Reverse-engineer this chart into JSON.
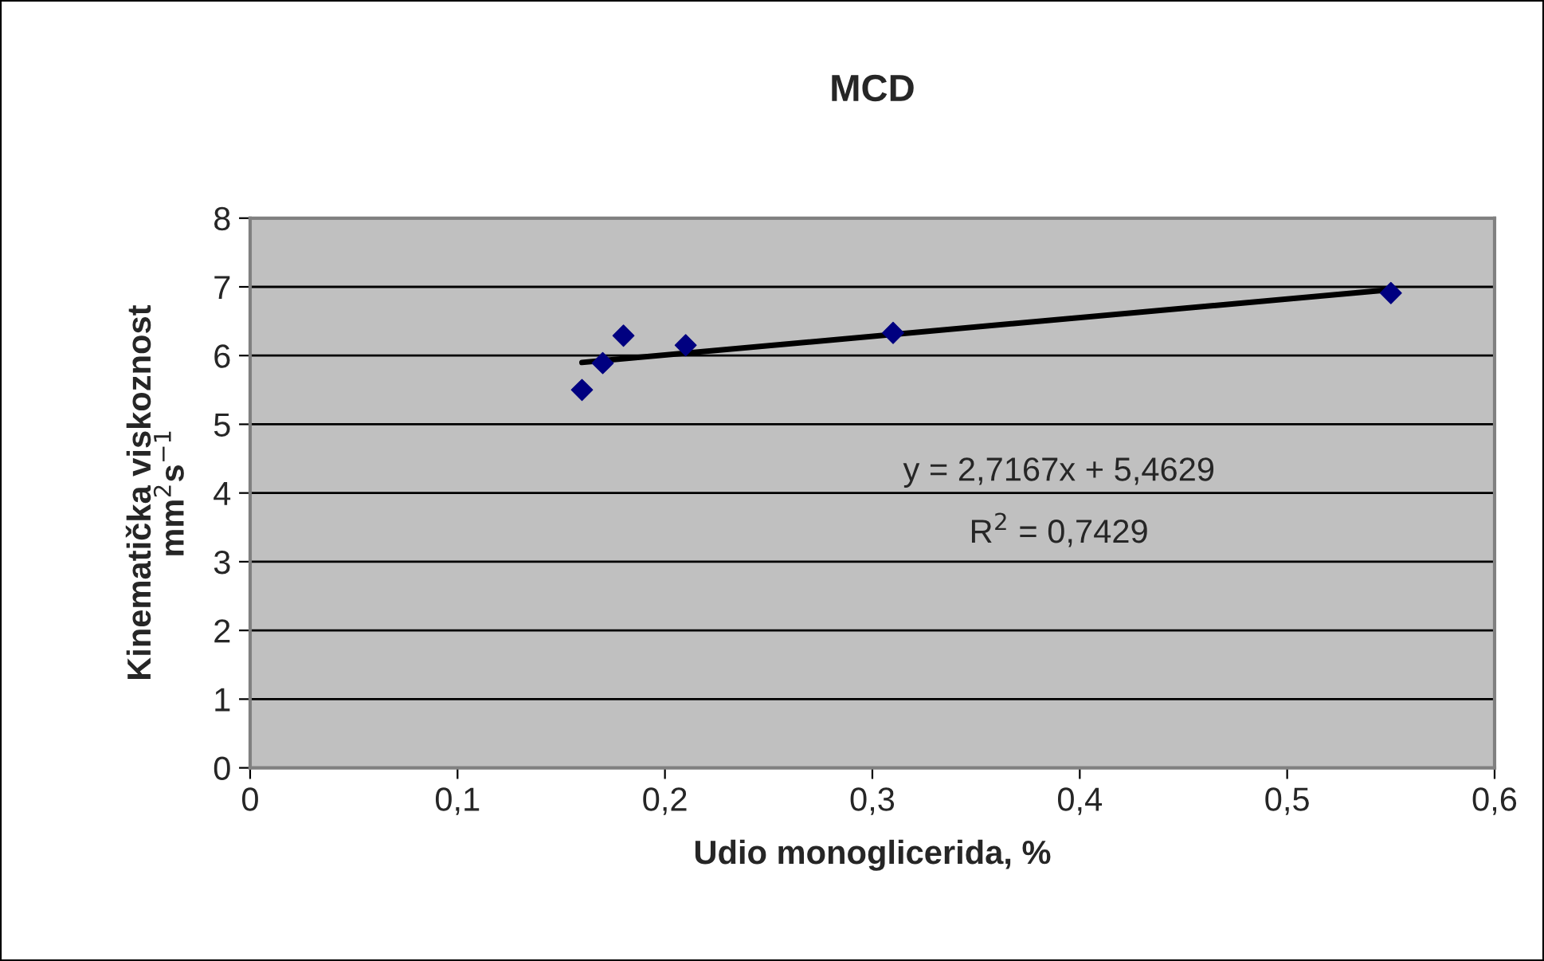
{
  "chart_data": {
    "type": "scatter",
    "title": "MCD",
    "xlabel": "Udio monoglicerida, %",
    "ylabel": "Kinematička viskoznost\nmm$^{2}$s$^{−1}$",
    "x": [
      0.16,
      0.17,
      0.18,
      0.21,
      0.31,
      0.55
    ],
    "series": [
      {
        "color": "#000080",
        "marker": "diamond",
        "values": [
          5.5,
          5.89,
          6.29,
          6.15,
          6.33,
          6.91
        ]
      },
      {
        "type": "line",
        "color": "#000000",
        "marker": "none",
        "line_style": "solid",
        "x": [
          0.16,
          0.55
        ],
        "values": [
          5.9,
          6.96
        ]
      }
    ],
    "xlim": [
      0,
      0.6
    ],
    "xticks": [
      0,
      {
        "value": 0.1,
        "label": "0,1"
      },
      {
        "value": 0.2,
        "label": "0,2"
      },
      {
        "value": 0.3,
        "label": "0,3"
      },
      {
        "value": 0.4,
        "label": "0,4"
      },
      {
        "value": 0.5,
        "label": "0,5"
      },
      {
        "value": 0.6,
        "label": "0,6"
      }
    ],
    "ylim": [
      0,
      8
    ],
    "yticks": [
      0,
      1,
      2,
      3,
      4,
      5,
      6,
      7,
      8
    ],
    "grid": "y",
    "legend": false,
    "annotations": [
      "y = 2,7167x + 5,4629",
      "R$^{2}$ = 0,7429"
    ]
  }
}
